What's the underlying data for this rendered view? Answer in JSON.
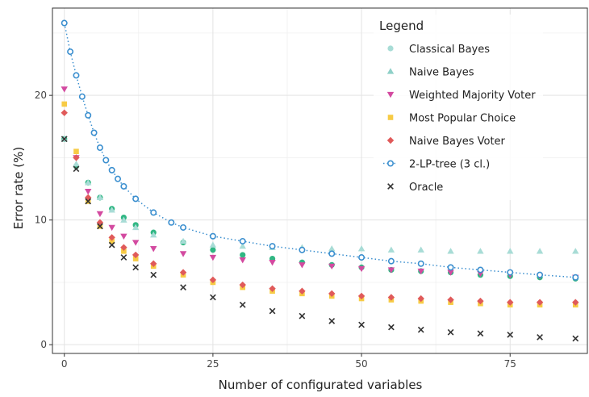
{
  "chart_data": {
    "type": "scatter",
    "xlabel": "Number of configurated variables",
    "ylabel": "Error rate (%)",
    "xlim": [
      -2,
      88
    ],
    "ylim": [
      -0.7,
      27
    ],
    "x_ticks": [
      0,
      25,
      50,
      75
    ],
    "y_ticks": [
      0,
      10,
      20
    ],
    "grid": true,
    "legend_position": "top-right",
    "legend": {
      "title": "Legend",
      "entries": [
        {
          "label": "Classical Bayes",
          "marker": "circle",
          "color": "#a8dcd6"
        },
        {
          "label": "Naive Bayes",
          "marker": "triangle-up",
          "color": "#8fd0c8"
        },
        {
          "label": "Weighted Majority Voter",
          "marker": "triangle-down",
          "color": "#d34aa0"
        },
        {
          "label": "Most Popular Choice",
          "marker": "square",
          "color": "#f7cb45"
        },
        {
          "label": "Naive Bayes Voter",
          "marker": "diamond",
          "color": "#e05a5a"
        },
        {
          "label": "2-LP-tree (3 cl.)",
          "marker": "open-circle-dotted-line",
          "color": "#3b8fcf"
        },
        {
          "label": "Oracle",
          "marker": "cross",
          "color": "#333333"
        }
      ]
    },
    "series": [
      {
        "name": "Classical Bayes",
        "marker": "circle",
        "color": "#30b783",
        "x": [
          0,
          2,
          4,
          6,
          8,
          10,
          12,
          15,
          20,
          25,
          30,
          35,
          40,
          45,
          50,
          55,
          60,
          65,
          70,
          75,
          80,
          86
        ],
        "y": [
          16.5,
          14.3,
          13.0,
          11.8,
          10.9,
          10.2,
          9.6,
          9.0,
          8.2,
          7.6,
          7.2,
          6.9,
          6.6,
          6.4,
          6.2,
          6.0,
          5.9,
          5.8,
          5.6,
          5.5,
          5.4,
          5.3
        ]
      },
      {
        "name": "Naive Bayes",
        "marker": "triangle-up",
        "color": "#a8dcd6",
        "x": [
          0,
          2,
          4,
          6,
          8,
          10,
          12,
          15,
          20,
          25,
          30,
          35,
          40,
          45,
          50,
          55,
          60,
          65,
          70,
          75,
          80,
          86
        ],
        "y": [
          16.5,
          14.5,
          13.0,
          11.8,
          10.8,
          10.0,
          9.4,
          8.8,
          8.3,
          8.0,
          7.9,
          7.8,
          7.8,
          7.7,
          7.7,
          7.6,
          7.6,
          7.5,
          7.5,
          7.5,
          7.5,
          7.5
        ]
      },
      {
        "name": "Weighted Majority Voter",
        "marker": "triangle-down",
        "color": "#d34aa0",
        "x": [
          0,
          2,
          4,
          6,
          8,
          10,
          12,
          15,
          20,
          25,
          30,
          35,
          40,
          45,
          50,
          55,
          60,
          65,
          70,
          75,
          80,
          86
        ],
        "y": [
          20.5,
          15.0,
          12.3,
          10.5,
          9.4,
          8.7,
          8.2,
          7.7,
          7.3,
          7.0,
          6.8,
          6.6,
          6.4,
          6.3,
          6.1,
          6.0,
          5.9,
          5.8,
          5.7,
          5.6,
          5.5,
          5.4
        ]
      },
      {
        "name": "Most Popular Choice",
        "marker": "square",
        "color": "#f7cb45",
        "x": [
          0,
          2,
          4,
          6,
          8,
          10,
          12,
          15,
          20,
          25,
          30,
          35,
          40,
          45,
          50,
          55,
          60,
          65,
          70,
          75,
          80,
          86
        ],
        "y": [
          19.3,
          15.5,
          11.5,
          9.5,
          8.3,
          7.5,
          6.9,
          6.3,
          5.6,
          5.0,
          4.6,
          4.3,
          4.1,
          3.9,
          3.7,
          3.6,
          3.5,
          3.4,
          3.3,
          3.2,
          3.2,
          3.2
        ]
      },
      {
        "name": "Naive Bayes Voter",
        "marker": "diamond",
        "color": "#e05a5a",
        "x": [
          0,
          2,
          4,
          6,
          8,
          10,
          12,
          15,
          20,
          25,
          30,
          35,
          40,
          45,
          50,
          55,
          60,
          65,
          70,
          75,
          80,
          86
        ],
        "y": [
          18.6,
          15.0,
          11.8,
          9.8,
          8.6,
          7.8,
          7.2,
          6.5,
          5.8,
          5.2,
          4.8,
          4.5,
          4.3,
          4.1,
          3.9,
          3.8,
          3.7,
          3.6,
          3.5,
          3.4,
          3.4,
          3.4
        ]
      },
      {
        "name": "2-LP-tree (3 cl.)",
        "marker": "open-circle",
        "color": "#3b8fcf",
        "x": [
          0,
          1,
          2,
          3,
          4,
          5,
          6,
          7,
          8,
          9,
          10,
          12,
          15,
          18,
          20,
          25,
          30,
          35,
          40,
          45,
          50,
          55,
          60,
          65,
          70,
          75,
          80,
          86
        ],
        "y": [
          25.8,
          23.5,
          21.6,
          19.9,
          18.4,
          17.0,
          15.8,
          14.8,
          14.0,
          13.3,
          12.7,
          11.7,
          10.6,
          9.8,
          9.4,
          8.7,
          8.3,
          7.9,
          7.6,
          7.3,
          7.0,
          6.7,
          6.5,
          6.2,
          6.0,
          5.8,
          5.6,
          5.4
        ]
      },
      {
        "name": "Oracle",
        "marker": "cross",
        "color": "#333333",
        "x": [
          0,
          2,
          4,
          6,
          8,
          10,
          12,
          15,
          20,
          25,
          30,
          35,
          40,
          45,
          50,
          55,
          60,
          65,
          70,
          75,
          80,
          86
        ],
        "y": [
          16.5,
          14.1,
          11.5,
          9.5,
          8.0,
          7.0,
          6.2,
          5.6,
          4.6,
          3.8,
          3.2,
          2.7,
          2.3,
          1.9,
          1.6,
          1.4,
          1.2,
          1.0,
          0.9,
          0.8,
          0.6,
          0.5
        ]
      }
    ]
  }
}
